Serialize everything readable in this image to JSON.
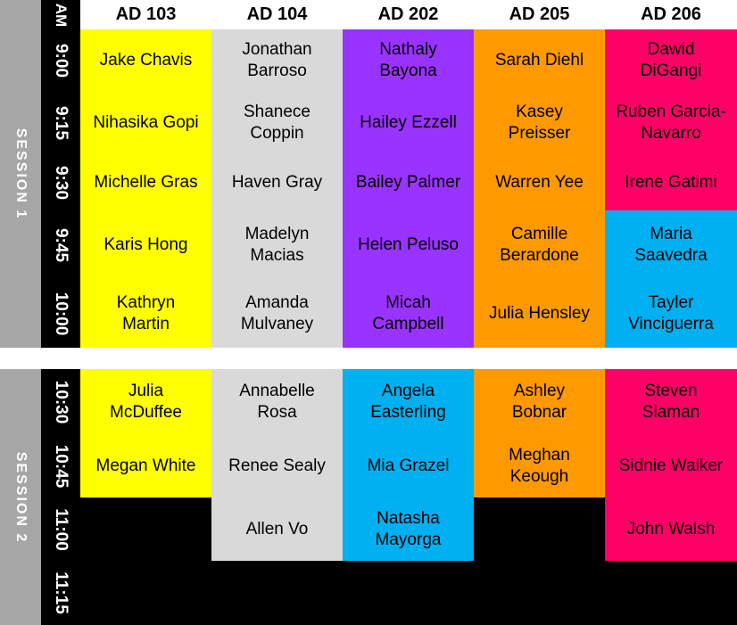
{
  "colors": {
    "yellow": "#ffff00",
    "gray": "#d9d9d9",
    "purple": "#9933ff",
    "orange": "#ff9900",
    "pink": "#ff0066",
    "blue": "#00b0f0",
    "black": "#000000"
  },
  "corner_label": "AM",
  "rooms": [
    "AD 103",
    "AD 104",
    "AD 202",
    "AD 205",
    "AD 206"
  ],
  "sessions": [
    {
      "label": "SESSION 1",
      "times": [
        "9:00",
        "9:15",
        "9:30",
        "9:45",
        "10:00"
      ],
      "columns": [
        [
          {
            "name": "Jake Chavis",
            "color": "yellow"
          },
          {
            "name": "Nihasika Gopi",
            "color": "yellow"
          },
          {
            "name": "Michelle Gras",
            "color": "yellow"
          },
          {
            "name": "Karis Hong",
            "color": "yellow"
          },
          {
            "name": "Kathryn Martin",
            "color": "yellow"
          }
        ],
        [
          {
            "name": "Jonathan Barroso",
            "color": "gray"
          },
          {
            "name": "Shanece Coppin",
            "color": "gray"
          },
          {
            "name": "Haven Gray",
            "color": "gray"
          },
          {
            "name": "Madelyn Macias",
            "color": "gray"
          },
          {
            "name": "Amanda Mulvaney",
            "color": "gray"
          }
        ],
        [
          {
            "name": "Nathaly Bayona",
            "color": "purple"
          },
          {
            "name": "Hailey Ezzell",
            "color": "purple"
          },
          {
            "name": "Bailey Palmer",
            "color": "purple"
          },
          {
            "name": "Helen Peluso",
            "color": "purple"
          },
          {
            "name": "Micah Campbell",
            "color": "purple"
          }
        ],
        [
          {
            "name": "Sarah Diehl",
            "color": "orange"
          },
          {
            "name": "Kasey Preisser",
            "color": "orange"
          },
          {
            "name": "Warren Yee",
            "color": "orange"
          },
          {
            "name": "Camille Berardone",
            "color": "orange"
          },
          {
            "name": "Julia Hensley",
            "color": "orange"
          }
        ],
        [
          {
            "name": "Dawid DiGangi",
            "color": "pink"
          },
          {
            "name": "Ruben Garcia-Navarro",
            "color": "pink"
          },
          {
            "name": "Irene Gatimi",
            "color": "pink"
          },
          {
            "name": "Maria Saavedra",
            "color": "blue"
          },
          {
            "name": "Tayler Vinciguerra",
            "color": "blue"
          }
        ]
      ]
    },
    {
      "label": "SESSION 2",
      "times": [
        "10:30",
        "10:45",
        "11:00",
        "11:15"
      ],
      "columns": [
        [
          {
            "name": "Julia McDuffee",
            "color": "yellow"
          },
          {
            "name": "Megan White",
            "color": "yellow"
          },
          {
            "name": "",
            "color": "black"
          },
          {
            "name": "",
            "color": "black"
          }
        ],
        [
          {
            "name": "Annabelle Rosa",
            "color": "gray"
          },
          {
            "name": "Renee Sealy",
            "color": "gray"
          },
          {
            "name": "Allen Vo",
            "color": "gray"
          },
          {
            "name": "",
            "color": "black"
          }
        ],
        [
          {
            "name": "Angela Easterling",
            "color": "blue"
          },
          {
            "name": "Mia Grazel",
            "color": "blue"
          },
          {
            "name": "Natasha Mayorga",
            "color": "blue"
          },
          {
            "name": "",
            "color": "black"
          }
        ],
        [
          {
            "name": "Ashley Bobnar",
            "color": "orange"
          },
          {
            "name": "Meghan Keough",
            "color": "orange"
          },
          {
            "name": "",
            "color": "black"
          },
          {
            "name": "",
            "color": "black"
          }
        ],
        [
          {
            "name": "Steven Slaman",
            "color": "pink"
          },
          {
            "name": "Sidnie Walker",
            "color": "pink"
          },
          {
            "name": "John Walsh",
            "color": "pink"
          },
          {
            "name": "",
            "color": "black"
          }
        ]
      ]
    }
  ]
}
